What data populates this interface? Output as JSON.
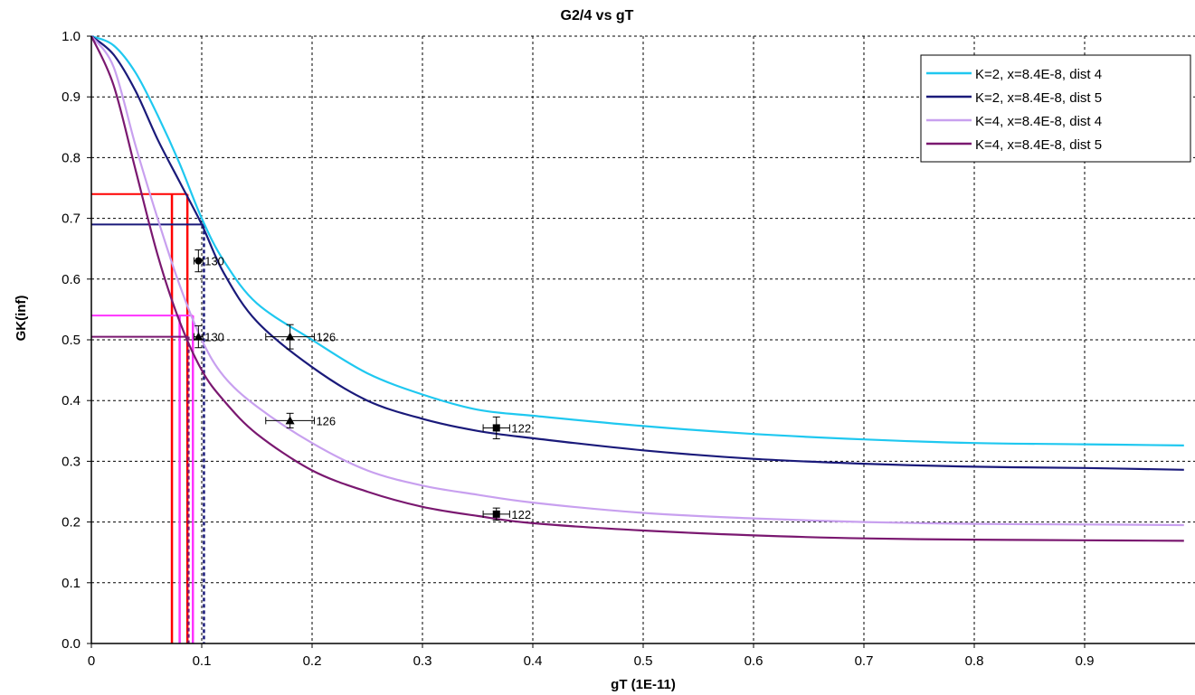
{
  "chart_data": {
    "type": "line",
    "title": "G2/4 vs gT",
    "xlabel": "gT (1E-11)",
    "ylabel": "GK(inf)",
    "xlim": [
      0,
      1.0
    ],
    "ylim": [
      0,
      1.0
    ],
    "xticks": [
      "0",
      "0.1",
      "0.2",
      "0.3",
      "0.4",
      "0.5",
      "0.6",
      "0.7",
      "0.8",
      "0.9"
    ],
    "yticks": [
      "0.0",
      "0.1",
      "0.2",
      "0.3",
      "0.4",
      "0.5",
      "0.6",
      "0.7",
      "0.8",
      "0.9",
      "1.0"
    ],
    "grid": "dashed",
    "legend_position": "top-right",
    "series": [
      {
        "name": "K=2, x=8.4E-8, dist 4",
        "color": "#1fc8f0",
        "x": [
          0,
          0.02,
          0.04,
          0.06,
          0.08,
          0.1,
          0.12,
          0.15,
          0.2,
          0.25,
          0.3,
          0.35,
          0.4,
          0.5,
          0.6,
          0.7,
          0.8,
          0.9,
          0.99
        ],
        "y": [
          1.0,
          0.985,
          0.94,
          0.87,
          0.79,
          0.7,
          0.63,
          0.56,
          0.5,
          0.445,
          0.41,
          0.385,
          0.375,
          0.358,
          0.345,
          0.336,
          0.33,
          0.328,
          0.326
        ]
      },
      {
        "name": "K=2, x=8.4E-8, dist 5",
        "color": "#1a1a7a",
        "x": [
          0,
          0.02,
          0.04,
          0.06,
          0.08,
          0.1,
          0.12,
          0.15,
          0.2,
          0.25,
          0.3,
          0.35,
          0.4,
          0.5,
          0.6,
          0.7,
          0.8,
          0.9,
          0.99
        ],
        "y": [
          1.0,
          0.97,
          0.91,
          0.83,
          0.76,
          0.69,
          0.61,
          0.53,
          0.455,
          0.4,
          0.37,
          0.35,
          0.338,
          0.318,
          0.304,
          0.296,
          0.291,
          0.289,
          0.286
        ]
      },
      {
        "name": "K=4, x=8.4E-8, dist 4",
        "color": "#c8a0ef",
        "x": [
          0,
          0.02,
          0.04,
          0.06,
          0.08,
          0.1,
          0.12,
          0.15,
          0.2,
          0.25,
          0.3,
          0.35,
          0.4,
          0.5,
          0.6,
          0.7,
          0.8,
          0.9,
          0.99
        ],
        "y": [
          1.0,
          0.95,
          0.82,
          0.7,
          0.59,
          0.5,
          0.44,
          0.39,
          0.33,
          0.285,
          0.26,
          0.245,
          0.232,
          0.215,
          0.206,
          0.2,
          0.197,
          0.196,
          0.195
        ]
      },
      {
        "name": "K=4, x=8.4E-8, dist 5",
        "color": "#7a1870",
        "x": [
          0,
          0.02,
          0.04,
          0.06,
          0.08,
          0.1,
          0.12,
          0.15,
          0.2,
          0.25,
          0.3,
          0.35,
          0.4,
          0.5,
          0.6,
          0.7,
          0.8,
          0.9,
          0.99
        ],
        "y": [
          1.0,
          0.92,
          0.78,
          0.64,
          0.53,
          0.45,
          0.4,
          0.345,
          0.285,
          0.25,
          0.225,
          0.21,
          0.198,
          0.186,
          0.178,
          0.173,
          0.171,
          0.17,
          0.169
        ]
      }
    ],
    "data_points": [
      {
        "label": "130",
        "marker": "circle",
        "x": 0.097,
        "y": 0.63,
        "xerr": 0.004,
        "yerr": 0.018
      },
      {
        "label": "130",
        "marker": "triangle",
        "x": 0.097,
        "y": 0.505,
        "xerr": 0.004,
        "yerr": 0.018
      },
      {
        "label": "126",
        "marker": "triangle",
        "x": 0.18,
        "y": 0.505,
        "xerr": 0.022,
        "yerr": 0.02
      },
      {
        "label": "126",
        "marker": "triangle",
        "x": 0.18,
        "y": 0.367,
        "xerr": 0.022,
        "yerr": 0.012
      },
      {
        "label": "122",
        "marker": "square",
        "x": 0.367,
        "y": 0.355,
        "xerr": 0.012,
        "yerr": 0.018
      },
      {
        "label": "122",
        "marker": "square",
        "x": 0.367,
        "y": 0.213,
        "xerr": 0.012,
        "yerr": 0.01
      }
    ],
    "reference_lines": [
      {
        "color": "#ff0000",
        "y": 0.74,
        "x_start": 0,
        "x_end": 0.087,
        "verticals": [
          0.073,
          0.087
        ],
        "dashed_vertical": false
      },
      {
        "color": "#1a1a7a",
        "y": 0.69,
        "x_start": 0,
        "x_end": 0.102,
        "verticals": [
          0.102
        ],
        "dashed_vertical": true
      },
      {
        "color": "#ff33ff",
        "y": 0.54,
        "x_start": 0,
        "x_end": 0.092,
        "verticals": [
          0.08,
          0.092
        ],
        "dashed_vertical": false
      },
      {
        "color": "#7a1870",
        "y": 0.505,
        "x_start": 0,
        "x_end": 0.088,
        "verticals": [
          0.088
        ],
        "dashed_vertical": true
      }
    ]
  }
}
